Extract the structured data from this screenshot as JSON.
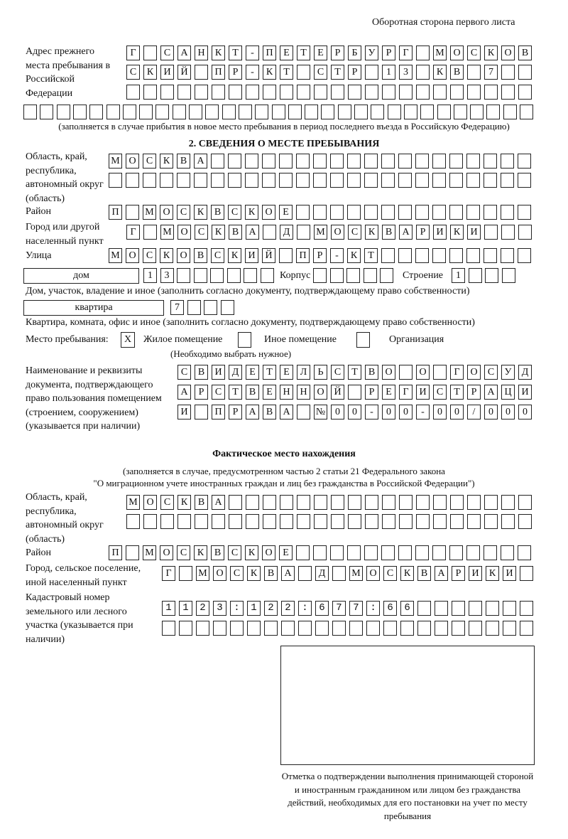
{
  "header": {
    "title": "Оборотная сторона первого листа"
  },
  "previous_address": {
    "label": "Адрес прежнего места пребывания в Российской Федерации",
    "rows": [
      "Г САНКТ-ПЕТЕРБУРГ МОСКОВ",
      "СКИЙ ПР-КТ СТР 13 КВ 7",
      "",
      ""
    ],
    "note": "(заполняется в случае прибытия в новое место пребывания в период последнего въезда в Российскую Федерацию)"
  },
  "section2": {
    "title": "2. СВЕДЕНИЯ О МЕСТЕ ПРЕБЫВАНИЯ",
    "region_label": "Область, край, республика, автономный округ (область)",
    "region_rows": [
      "МОСКВА",
      ""
    ],
    "district_label": "Район",
    "district": "П МОСКВСКОЕ",
    "city_label": "Город или другой населенный пункт",
    "city": "Г МОСКВА Д МОСКВАРИКИ",
    "street_label": "Улица",
    "street": "МОСКОВСКИЙ ПР-КТ",
    "house_type": "дом",
    "house_number": "13",
    "korpus_label": "Корпус",
    "korpus": "",
    "building_label": "Строение",
    "building": "1",
    "house_note": "Дом, участок, владение и иное (заполнить согласно документу, подтверждающему право собственности)",
    "apt_type": "квартира",
    "apt_number": "7",
    "apt_note": "Квартира, комната, офис и иное (заполнить согласно документу, подтверждающему право собственности)",
    "stay_label": "Место пребывания:",
    "stay_options": [
      {
        "label": "Жилое помещение",
        "mark": "X"
      },
      {
        "label": "Иное помещение",
        "mark": ""
      },
      {
        "label": "Организация",
        "mark": ""
      }
    ],
    "stay_note": "(Необходимо выбрать нужное)",
    "doc_label": "Наименование и реквизиты документа, подтверждающего право пользования помещением (строением, сооружением) (указывается при наличии)",
    "doc_rows": [
      "СВИДЕТЕЛЬСТВО О ГОСУД",
      "АРСТВЕННОЙ РЕГИСТРАЦИ",
      "И ПРАВА №00-00-00/000"
    ]
  },
  "actual": {
    "title": "Фактическое место нахождения",
    "note1": "(заполняется в случае, предусмотренном частью 2 статьи 21 Федерального закона",
    "note2": "\"О миграционном учете иностранных граждан и лиц без гражданства в Российской Федерации\")",
    "region_label": "Область, край, республика, автономный округ (область)",
    "region_rows": [
      "МОСКВА",
      ""
    ],
    "district_label": "Район",
    "district": "П МОСКВСКОЕ",
    "city_label": "Город, сельское поселение, иной населенный пункт",
    "city": "Г МОСКВА Д МОСКВАРИКИ",
    "cadastral_label": "Кадастровый номер земельного или лесного участка (указывается при наличии)",
    "cadastral_rows": [
      "1123:122:677:66",
      ""
    ]
  },
  "stamp": {
    "caption": "Отметка о подтверждении выполнения принимающей стороной и иностранным гражданином или лицом без гражданства действий, необходимых для его постановки на учет по месту пребывания"
  }
}
